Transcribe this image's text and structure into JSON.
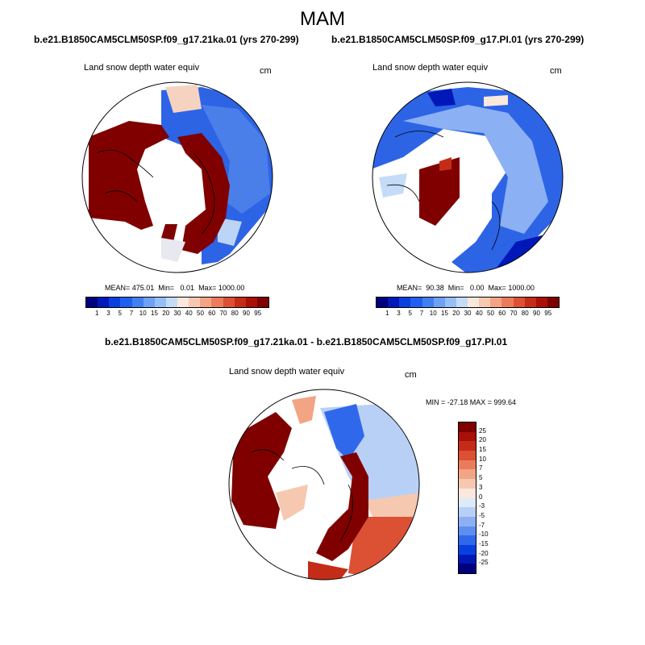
{
  "figure": {
    "title": "MAM"
  },
  "panels": [
    {
      "title": "b.e21.B1850CAM5CLM50SP.f09_g17.21ka.01 (yrs 270-299)",
      "variable": "Land snow depth water equiv",
      "units": "cm",
      "stats": "MEAN= 475.01  Min=   0.01  Max= 1000.00"
    },
    {
      "title": "b.e21.B1850CAM5CLM50SP.f09_g17.PI.01 (yrs 270-299)",
      "variable": "Land snow depth water equiv",
      "units": "cm",
      "stats": "MEAN=  90.38  Min=   0.00  Max= 1000.00"
    },
    {
      "title": "b.e21.B1850CAM5CLM50SP.f09_g17.21ka.01 - b.e21.B1850CAM5CLM50SP.f09_g17.PI.01",
      "variable": "Land snow depth water equiv",
      "units": "cm",
      "stats": "MIN = -27.18 MAX = 999.64"
    }
  ],
  "abs_colorbar": {
    "labels": [
      "1",
      "3",
      "5",
      "7",
      "10",
      "15",
      "20",
      "30",
      "40",
      "50",
      "60",
      "70",
      "80",
      "90",
      "95"
    ],
    "colors": [
      "#00007f",
      "#0018b8",
      "#0840e0",
      "#2060f0",
      "#4080f0",
      "#6ea0f4",
      "#98bef6",
      "#c4dcf8",
      "#fbe8dc",
      "#f6c8b0",
      "#f2a484",
      "#ea7c5c",
      "#dc5034",
      "#c42c18",
      "#a81008",
      "#800000"
    ]
  },
  "diff_colorbar": {
    "labels": [
      "25",
      "20",
      "15",
      "10",
      "7",
      "5",
      "3",
      "0",
      "-3",
      "-5",
      "-7",
      "-10",
      "-15",
      "-20",
      "-25"
    ],
    "colors": [
      "#800000",
      "#a81008",
      "#c42c18",
      "#dc5034",
      "#ea7c5c",
      "#f2a484",
      "#f6c8b0",
      "#fbe8dc",
      "#ddeaf8",
      "#b8d0f6",
      "#8cb0f4",
      "#5e8ef0",
      "#3068ec",
      "#0840e0",
      "#0018b8",
      "#00007f"
    ]
  },
  "colors": {
    "land_high": "#800000",
    "no_data": "#ffffff",
    "outline": "#000000"
  }
}
